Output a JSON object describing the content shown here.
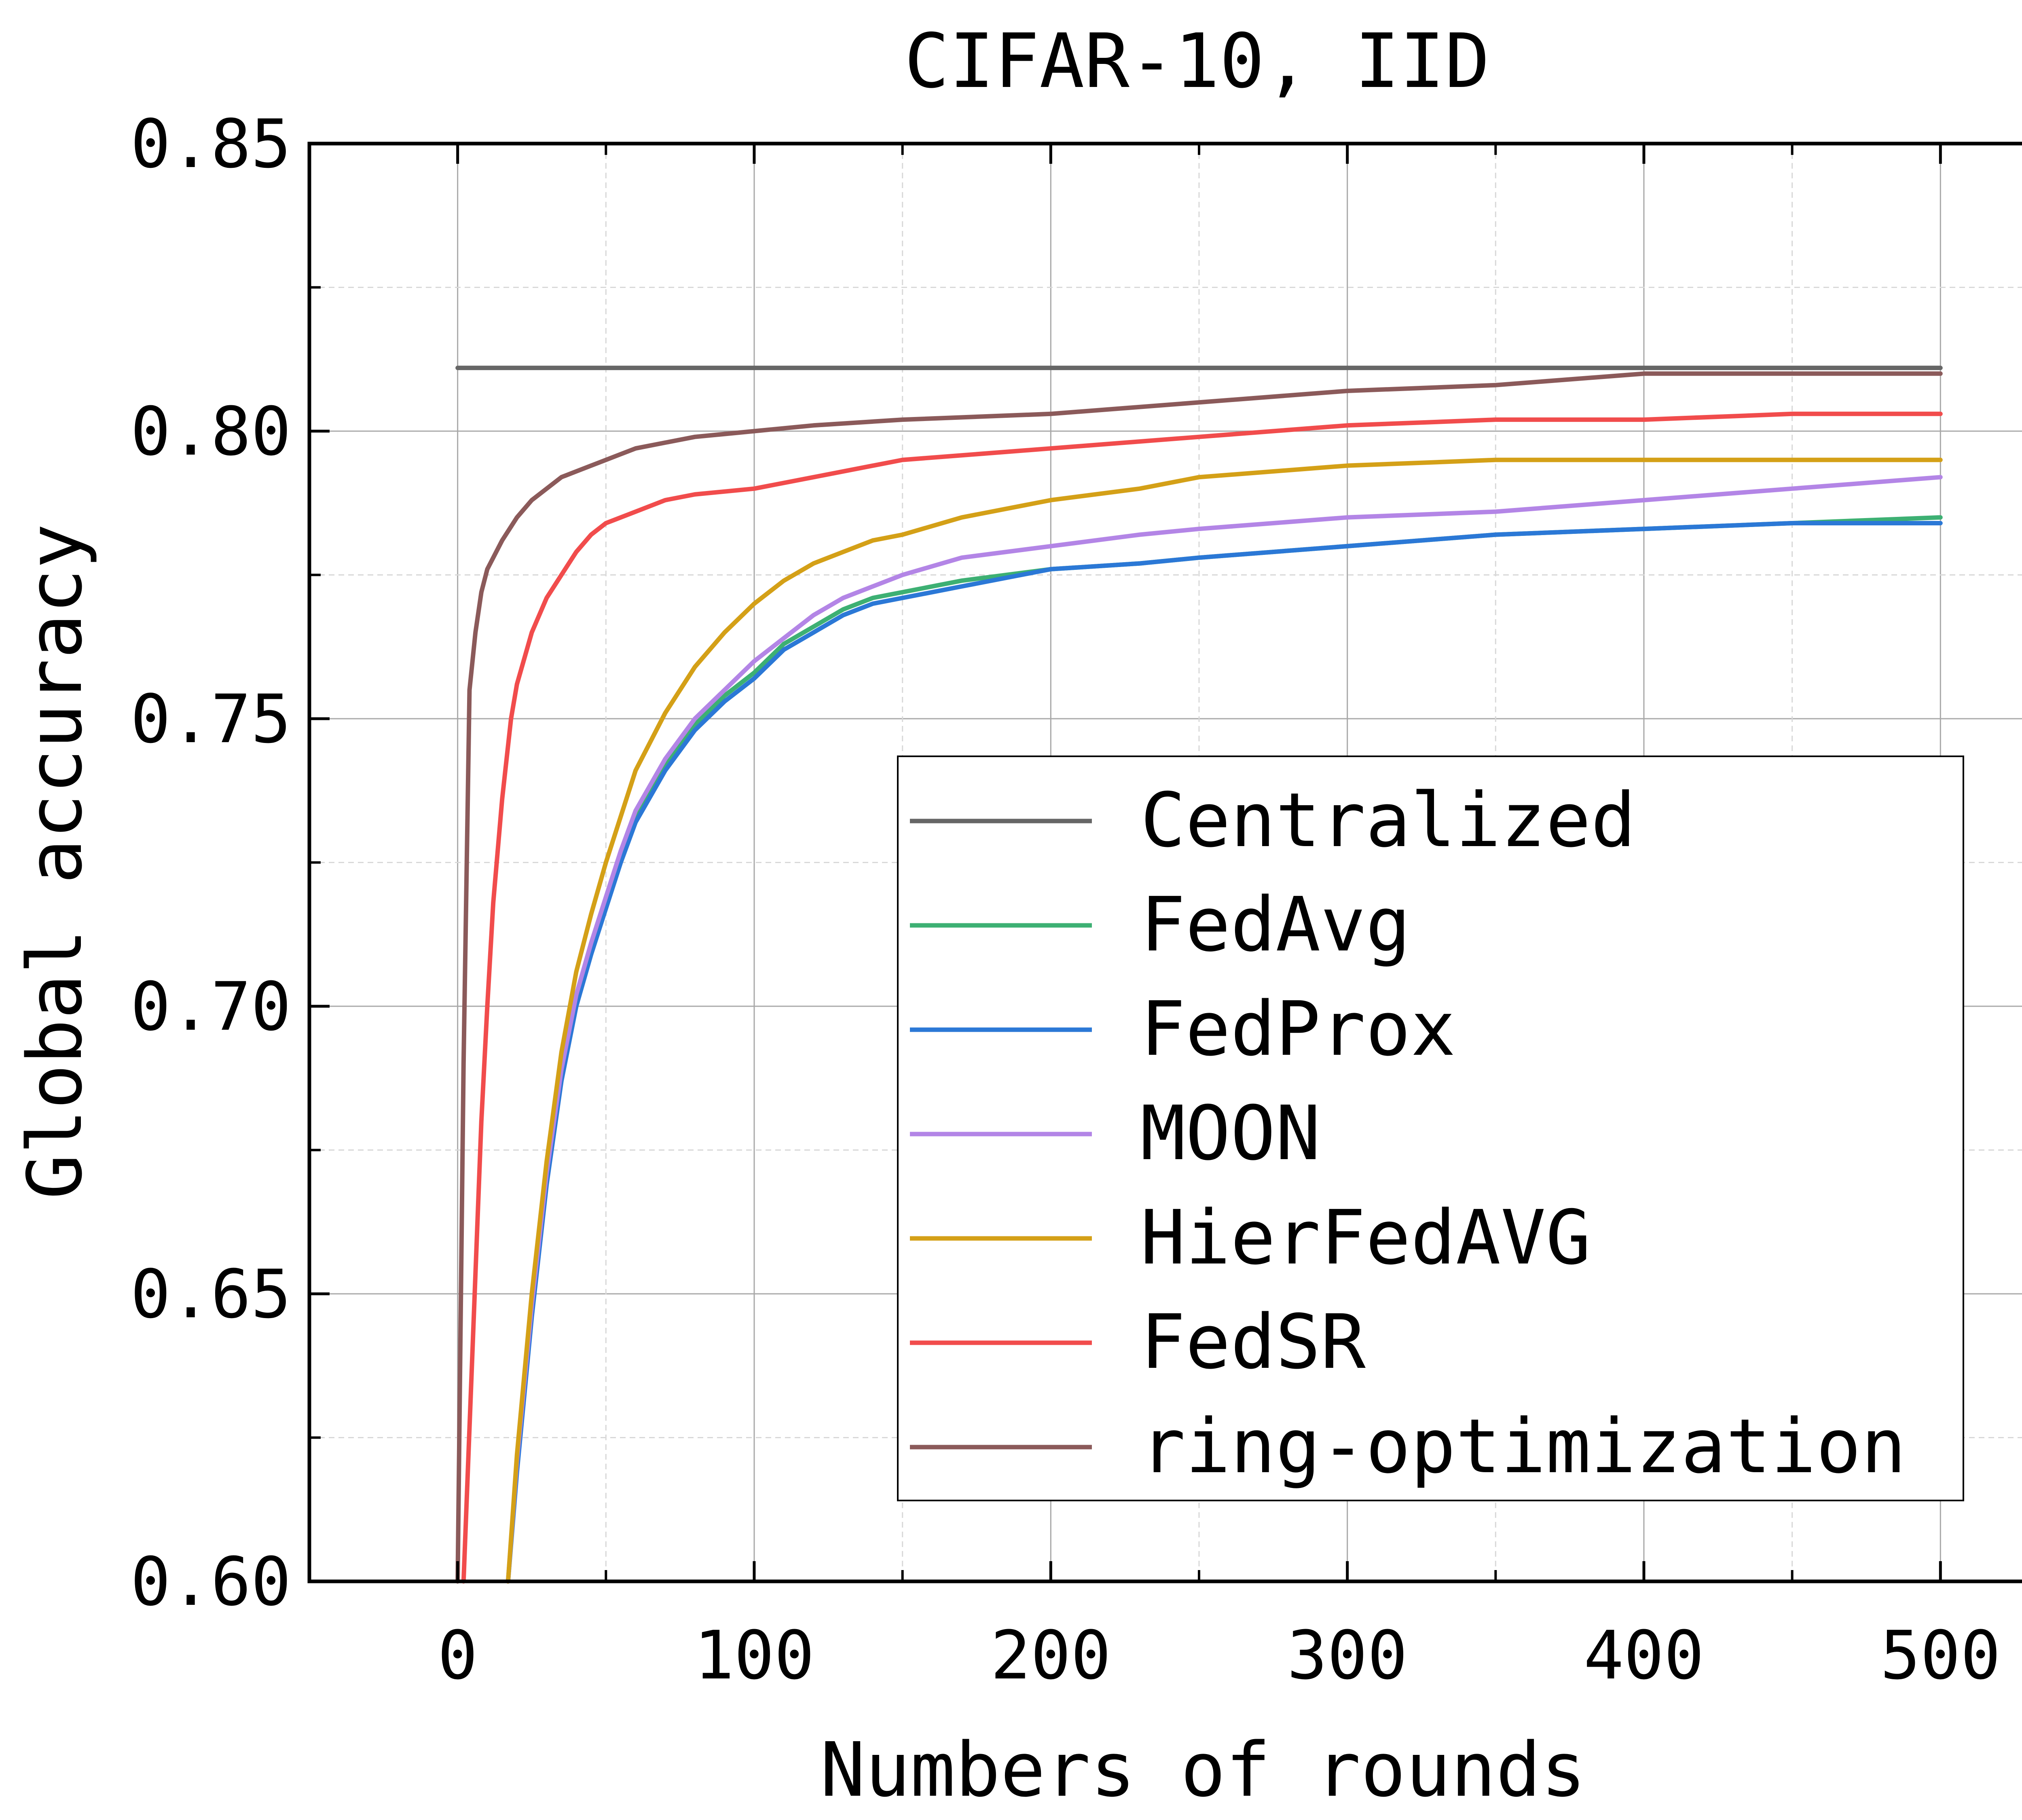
{
  "chart_data": {
    "type": "line",
    "title": "CIFAR-10, IID",
    "xlabel": "Numbers of rounds",
    "ylabel": "Global accuracy",
    "xlim": [
      -50,
      550
    ],
    "ylim": [
      0.6,
      0.85
    ],
    "xticks": [
      0,
      100,
      200,
      300,
      400,
      500
    ],
    "xtick_labels": [
      "0",
      "100",
      "200",
      "300",
      "400",
      "500"
    ],
    "yticks": [
      0.6,
      0.65,
      0.7,
      0.75,
      0.8,
      0.85
    ],
    "ytick_labels": [
      "0.60",
      "0.65",
      "0.70",
      "0.75",
      "0.80",
      "0.85"
    ],
    "grid": true,
    "legend_position": "lower-right",
    "series": [
      {
        "name": "Centralized",
        "color": "#666666",
        "x": [
          0,
          500
        ],
        "y": [
          0.811,
          0.811
        ]
      },
      {
        "name": "FedAvg",
        "color": "#3db073",
        "x": [
          17,
          20,
          25,
          30,
          35,
          40,
          45,
          50,
          55,
          60,
          70,
          80,
          90,
          100,
          110,
          120,
          130,
          140,
          150,
          170,
          200,
          230,
          250,
          300,
          350,
          400,
          450,
          500
        ],
        "y": [
          0.6,
          0.62,
          0.648,
          0.67,
          0.688,
          0.701,
          0.71,
          0.718,
          0.726,
          0.733,
          0.742,
          0.749,
          0.754,
          0.758,
          0.763,
          0.766,
          0.769,
          0.771,
          0.772,
          0.774,
          0.776,
          0.777,
          0.778,
          0.78,
          0.782,
          0.783,
          0.784,
          0.785
        ]
      },
      {
        "name": "FedProx",
        "color": "#2b78d6",
        "x": [
          17,
          20,
          25,
          30,
          35,
          40,
          45,
          50,
          55,
          60,
          70,
          80,
          90,
          100,
          110,
          120,
          130,
          140,
          150,
          170,
          200,
          230,
          250,
          300,
          350,
          400,
          450,
          500
        ],
        "y": [
          0.6,
          0.619,
          0.646,
          0.669,
          0.687,
          0.7,
          0.709,
          0.717,
          0.725,
          0.732,
          0.741,
          0.748,
          0.753,
          0.757,
          0.762,
          0.765,
          0.768,
          0.77,
          0.771,
          0.773,
          0.776,
          0.777,
          0.778,
          0.78,
          0.782,
          0.783,
          0.784,
          0.784
        ]
      },
      {
        "name": "MOON",
        "color": "#b385e6",
        "x": [
          17,
          20,
          25,
          30,
          35,
          40,
          45,
          50,
          55,
          60,
          70,
          80,
          90,
          100,
          110,
          120,
          130,
          140,
          150,
          170,
          200,
          230,
          250,
          300,
          350,
          400,
          450,
          500
        ],
        "y": [
          0.6,
          0.621,
          0.648,
          0.671,
          0.689,
          0.702,
          0.711,
          0.719,
          0.727,
          0.734,
          0.743,
          0.75,
          0.755,
          0.76,
          0.764,
          0.768,
          0.771,
          0.773,
          0.775,
          0.778,
          0.78,
          0.782,
          0.783,
          0.785,
          0.786,
          0.788,
          0.79,
          0.792
        ]
      },
      {
        "name": "HierFedAVG",
        "color": "#d4a017",
        "x": [
          17,
          20,
          25,
          30,
          35,
          40,
          45,
          50,
          55,
          60,
          70,
          80,
          90,
          100,
          110,
          120,
          130,
          140,
          150,
          170,
          200,
          230,
          250,
          300,
          350,
          400,
          450,
          500
        ],
        "y": [
          0.6,
          0.622,
          0.65,
          0.673,
          0.692,
          0.706,
          0.716,
          0.725,
          0.733,
          0.741,
          0.751,
          0.759,
          0.765,
          0.77,
          0.774,
          0.777,
          0.779,
          0.781,
          0.782,
          0.785,
          0.788,
          0.79,
          0.792,
          0.794,
          0.795,
          0.795,
          0.795,
          0.795
        ]
      },
      {
        "name": "FedSR",
        "color": "#f14c4c",
        "x": [
          2,
          5,
          8,
          10,
          12,
          15,
          18,
          20,
          25,
          30,
          35,
          40,
          45,
          50,
          60,
          70,
          80,
          100,
          120,
          150,
          200,
          250,
          300,
          350,
          400,
          450,
          500
        ],
        "y": [
          0.6,
          0.64,
          0.68,
          0.7,
          0.718,
          0.736,
          0.75,
          0.756,
          0.765,
          0.771,
          0.775,
          0.779,
          0.782,
          0.784,
          0.786,
          0.788,
          0.789,
          0.79,
          0.792,
          0.795,
          0.797,
          0.799,
          0.801,
          0.802,
          0.802,
          0.803,
          0.803
        ]
      },
      {
        "name": "ring-optimization",
        "color": "#8b5a5a",
        "x": [
          0,
          2,
          4,
          6,
          8,
          10,
          12,
          15,
          20,
          25,
          30,
          35,
          40,
          45,
          50,
          60,
          70,
          80,
          100,
          120,
          150,
          200,
          250,
          300,
          350,
          400,
          450,
          500
        ],
        "y": [
          0.6,
          0.69,
          0.755,
          0.765,
          0.772,
          0.776,
          0.778,
          0.781,
          0.785,
          0.788,
          0.79,
          0.792,
          0.793,
          0.794,
          0.795,
          0.797,
          0.798,
          0.799,
          0.8,
          0.801,
          0.802,
          0.803,
          0.805,
          0.807,
          0.808,
          0.81,
          0.81,
          0.81
        ]
      }
    ]
  }
}
